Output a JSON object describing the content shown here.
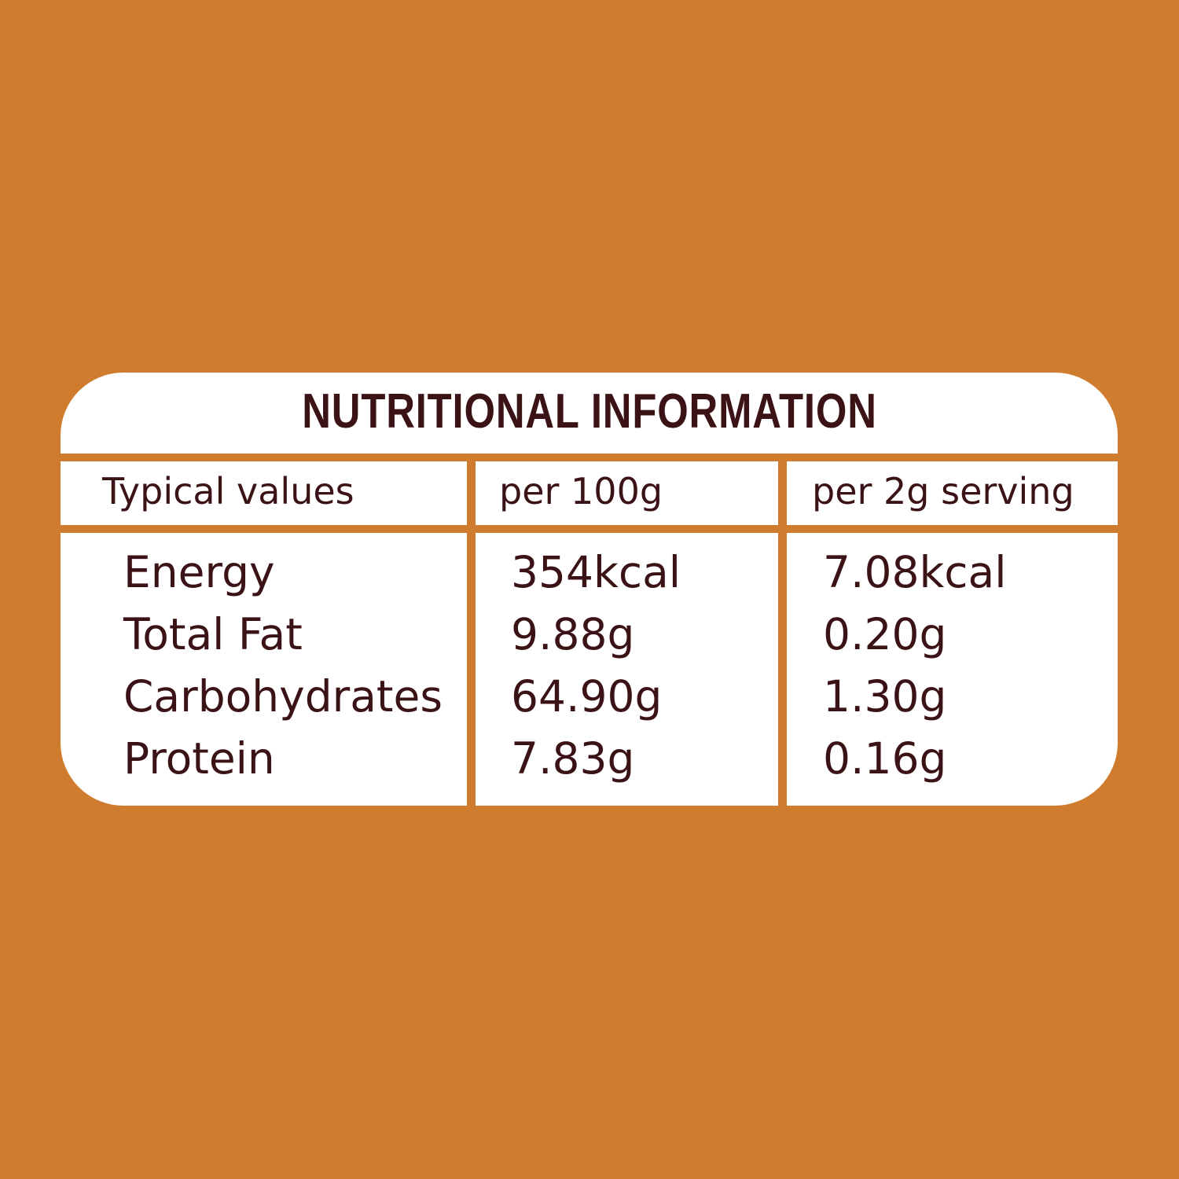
{
  "title": "NUTRITIONAL INFORMATION",
  "headers": [
    "Typical values",
    "per 100g",
    "per 2g serving"
  ],
  "rows": [
    {
      "nutrient": "Energy",
      "per_100g": "354kcal",
      "per_serving": "7.08kcal"
    },
    {
      "nutrient": "Total Fat",
      "per_100g": "9.88g",
      "per_serving": "0.20g"
    },
    {
      "nutrient": "Carbohydrates",
      "per_100g": "64.90g",
      "per_serving": "1.30g"
    },
    {
      "nutrient": "Protein",
      "per_100g": "7.83g",
      "per_serving": "0.16g"
    }
  ],
  "colors": {
    "background": "#D07C2E",
    "panel": "#FFFFFF",
    "text": "#3B1316"
  }
}
